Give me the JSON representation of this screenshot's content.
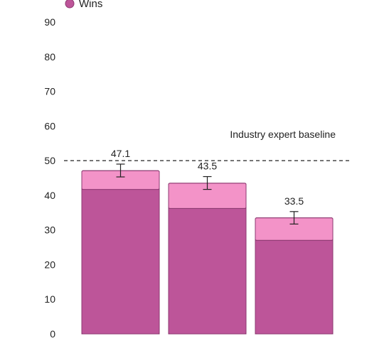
{
  "chart_data": {
    "type": "bar",
    "stacked": true,
    "categories": [
      "",
      "",
      ""
    ],
    "series": [
      {
        "name": "Wins",
        "values": [
          41.7,
          36.2,
          27.0
        ],
        "color": "#bd5599"
      },
      {
        "name": "",
        "values": [
          5.4,
          7.3,
          6.5
        ],
        "color": "#f393c8"
      }
    ],
    "totals": [
      47.1,
      43.5,
      33.5
    ],
    "total_labels": [
      "47.1",
      "43.5",
      "33.5"
    ],
    "error_bars": [
      [
        45.3,
        49.0
      ],
      [
        41.7,
        45.4
      ],
      [
        31.7,
        35.3
      ]
    ],
    "ylim": [
      0,
      90
    ],
    "yticks": [
      0,
      10,
      20,
      30,
      40,
      50,
      60,
      70,
      80,
      90
    ],
    "grid": false,
    "legend": {
      "position": "top-left",
      "entries": [
        "Wins"
      ]
    },
    "reference_line": {
      "value": 50,
      "label": "Industry expert baseline",
      "style": "dashed"
    },
    "title": "",
    "xlabel": "",
    "ylabel": ""
  }
}
